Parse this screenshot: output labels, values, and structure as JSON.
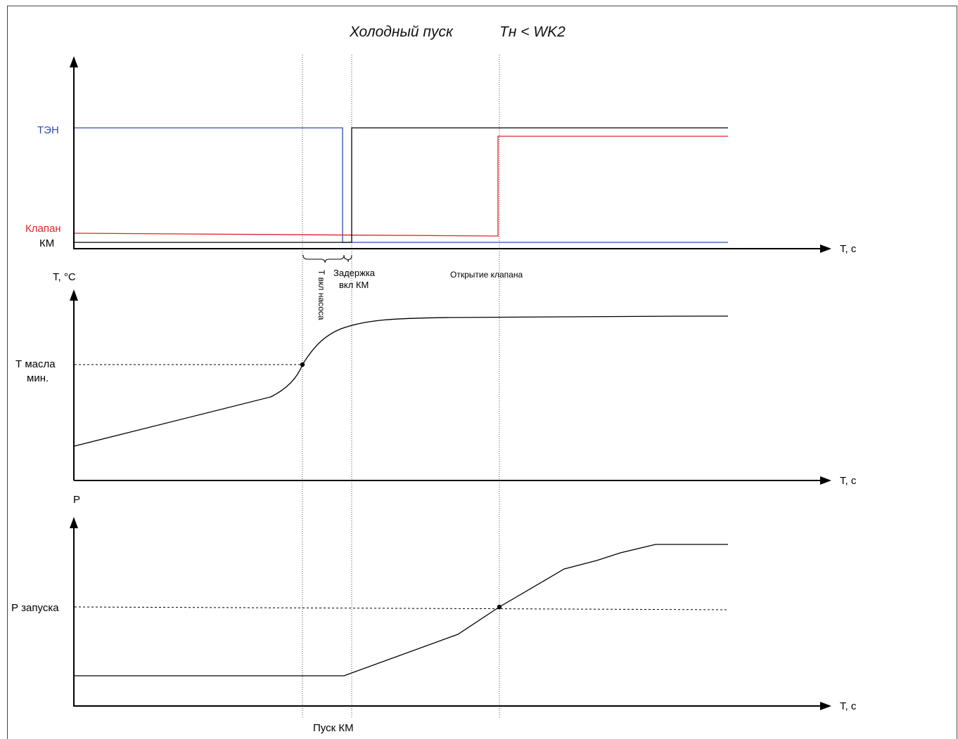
{
  "header": {
    "mode": "Холодный пуск",
    "condition": "Тн < WK2"
  },
  "colors": {
    "ten": "#2f4fa8",
    "valve": "#e0232a",
    "km": "#000000",
    "frame": "#444444"
  },
  "panel_top": {
    "label_ten": "ТЭН",
    "label_valve": "Клапан",
    "label_km": "КМ",
    "x_axis_label": "T, c"
  },
  "panel_temp": {
    "y_axis_label": "T, °C",
    "level_label_line1": "Т масла",
    "level_label_line2": "мин.",
    "x_axis_label": "T, c"
  },
  "panel_pressure": {
    "y_axis_label": "P",
    "level_label": "Р запуска",
    "x_axis_label": "T, c"
  },
  "annotations": {
    "pump_on": "Т вкл насоса",
    "km_delay_line1": "Задержка",
    "km_delay_line2": "вкл КМ",
    "valve_open": "Открытие клапана",
    "km_start": "Пуск КМ"
  }
}
